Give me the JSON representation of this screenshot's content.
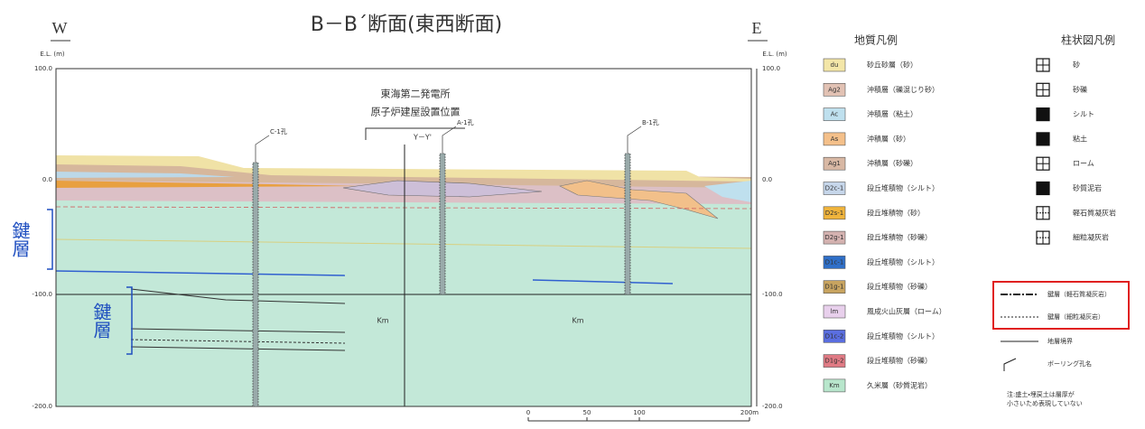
{
  "title": "B－B´断面(東西断面)",
  "axis": {
    "left_dir": "W",
    "right_dir": "E",
    "left_unit": "E.L. (m)",
    "right_unit": "E.L. (m)",
    "left_ticks": [
      "100.0",
      "0.0",
      "-100.0",
      "-200.0"
    ],
    "right_ticks": [
      "100.0",
      "0.0",
      "-100.0",
      "-200.0"
    ]
  },
  "site": {
    "line1": "東海第二発電所",
    "line2": "原子炉建屋設置位置"
  },
  "section_line": "Y－Y'",
  "boreholes": [
    "C-1孔",
    "A-1孔",
    "B-1孔"
  ],
  "key_bed_labels": [
    "鍵層",
    "鍵層"
  ],
  "formation_labels": [
    "Km",
    "Km"
  ],
  "scale": [
    "0",
    "50",
    "100",
    "200m"
  ],
  "geology_legend": {
    "title": "地質凡例",
    "items": [
      {
        "code": "du",
        "label": "砂丘砂層（砂）",
        "color": "#f3e6a8"
      },
      {
        "code": "Ag2",
        "label": "沖積層（礫混じり砂）",
        "color": "#e2c2b4"
      },
      {
        "code": "Ac",
        "label": "沖積層（粘土）",
        "color": "#bfe0ee"
      },
      {
        "code": "As",
        "label": "沖積層（砂）",
        "color": "#f4c08a"
      },
      {
        "code": "Ag1",
        "label": "沖積層（砂礫）",
        "color": "#d8b8a4"
      },
      {
        "code": "D2c-1",
        "label": "段丘堆積物（シルト）",
        "color": "#c6d6ea"
      },
      {
        "code": "D2s-1",
        "label": "段丘堆積物（砂）",
        "color": "#f0b43c"
      },
      {
        "code": "D2g-1",
        "label": "段丘堆積物（砂礫）",
        "color": "#d4b2b0"
      },
      {
        "code": "D1c-1",
        "label": "段丘堆積物（シルト）",
        "color": "#2f6fc8"
      },
      {
        "code": "D1g-1",
        "label": "段丘堆積物（砂礫）",
        "color": "#c8a460"
      },
      {
        "code": "lm",
        "label": "風成火山灰層（ローム）",
        "color": "#e8d0ec"
      },
      {
        "code": "D1c-2",
        "label": "段丘堆積物（シルト）",
        "color": "#5a6ee0"
      },
      {
        "code": "D1g-2",
        "label": "段丘堆積物（砂礫）",
        "color": "#e07a84"
      },
      {
        "code": "Km",
        "label": "久米層（砂質泥岩）",
        "color": "#b8e6cc"
      }
    ]
  },
  "column_legend": {
    "title": "柱状図凡例",
    "items": [
      "砂",
      "砂礫",
      "シルト",
      "粘土",
      "ローム",
      "砂質泥岩",
      "軽石質凝灰岩",
      "細粒凝灰岩"
    ]
  },
  "line_legend": [
    "鍵層（軽石質凝灰岩）",
    "鍵層（細粒凝灰岩）",
    "地層境界",
    "ボーリング孔名"
  ],
  "note": [
    "注:盛土・埋戻土は層厚が",
    "小さいため表現していない"
  ]
}
